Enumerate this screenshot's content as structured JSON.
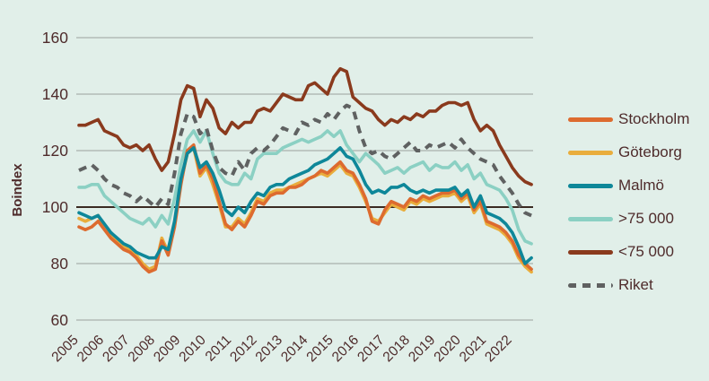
{
  "chart_data": {
    "type": "line",
    "title": "",
    "ylabel": "Boindex",
    "yticks": [
      160,
      140,
      120,
      100,
      80,
      60
    ],
    "ylim": [
      55,
      165
    ],
    "reference_line": 100,
    "grid": "horizontal",
    "legend_position": "right",
    "x_years": [
      "2005",
      "2006",
      "2007",
      "2008",
      "2009",
      "2010",
      "2011",
      "2012",
      "2013",
      "2014",
      "2015",
      "2016",
      "2017",
      "2018",
      "2019",
      "2020",
      "2021",
      "2022"
    ],
    "points_per_year": 4,
    "x_note": "values are quarterly estimates, 2005Q1-2022Q4",
    "series": [
      {
        "key": "stockholm",
        "name": "Stockholm",
        "color": "#dd6b2f",
        "line_style": "solid",
        "values": [
          93,
          92,
          93,
          95,
          92,
          89,
          87,
          85,
          84,
          82,
          79,
          77,
          78,
          88,
          83,
          93,
          108,
          120,
          122,
          112,
          115,
          110,
          102,
          94,
          92,
          95,
          93,
          97,
          102,
          101,
          104,
          105,
          105,
          107,
          107,
          108,
          110,
          111,
          113,
          112,
          114,
          116,
          113,
          112,
          108,
          103,
          95,
          94,
          99,
          102,
          101,
          100,
          103,
          102,
          104,
          103,
          104,
          105,
          105,
          106,
          103,
          105,
          99,
          102,
          95,
          94,
          93,
          91,
          88,
          83,
          80,
          78
        ]
      },
      {
        "key": "goteborg",
        "name": "Göteborg",
        "color": "#e9ad3c",
        "line_style": "solid",
        "values": [
          96,
          95,
          96,
          97,
          93,
          90,
          88,
          86,
          85,
          83,
          80,
          78,
          79,
          89,
          84,
          94,
          109,
          119,
          121,
          111,
          114,
          108,
          101,
          93,
          93,
          96,
          94,
          98,
          103,
          102,
          105,
          106,
          106,
          107,
          108,
          109,
          110,
          111,
          112,
          111,
          113,
          115,
          112,
          111,
          107,
          102,
          96,
          95,
          98,
          101,
          100,
          99,
          102,
          101,
          103,
          102,
          103,
          104,
          104,
          105,
          102,
          104,
          98,
          101,
          94,
          93,
          92,
          90,
          87,
          82,
          79,
          77
        ]
      },
      {
        "key": "malmo",
        "name": "Malmö",
        "color": "#0e8799",
        "line_style": "solid",
        "values": [
          98,
          97,
          96,
          97,
          94,
          91,
          89,
          87,
          86,
          84,
          83,
          82,
          82,
          86,
          85,
          95,
          110,
          119,
          121,
          114,
          116,
          112,
          106,
          99,
          97,
          100,
          98,
          102,
          105,
          104,
          107,
          108,
          108,
          110,
          111,
          112,
          113,
          115,
          116,
          117,
          119,
          121,
          118,
          117,
          113,
          108,
          105,
          106,
          105,
          107,
          107,
          108,
          106,
          105,
          106,
          105,
          106,
          106,
          106,
          107,
          104,
          106,
          100,
          104,
          98,
          97,
          96,
          94,
          91,
          86,
          80,
          82
        ]
      },
      {
        "key": "gt75000",
        "name": ">75 000",
        "color": "#8bd0c3",
        "line_style": "solid",
        "values": [
          107,
          107,
          108,
          108,
          104,
          102,
          100,
          98,
          96,
          95,
          94,
          96,
          93,
          97,
          94,
          103,
          115,
          124,
          127,
          123,
          127,
          119,
          112,
          109,
          108,
          108,
          112,
          110,
          117,
          119,
          119,
          119,
          121,
          122,
          123,
          124,
          123,
          124,
          125,
          127,
          125,
          127,
          122,
          119,
          116,
          119,
          117,
          115,
          112,
          113,
          114,
          112,
          114,
          115,
          116,
          113,
          115,
          114,
          114,
          116,
          113,
          115,
          110,
          112,
          108,
          107,
          106,
          103,
          99,
          92,
          88,
          87
        ]
      },
      {
        "key": "lt75000",
        "name": "<75 000",
        "color": "#8a3a1d",
        "line_style": "solid",
        "values": [
          129,
          129,
          130,
          131,
          127,
          126,
          125,
          122,
          121,
          122,
          120,
          122,
          117,
          113,
          116,
          126,
          138,
          143,
          142,
          132,
          138,
          135,
          128,
          126,
          130,
          128,
          130,
          130,
          134,
          135,
          134,
          137,
          140,
          139,
          138,
          138,
          143,
          144,
          142,
          140,
          146,
          149,
          148,
          139,
          137,
          135,
          134,
          131,
          129,
          131,
          130,
          132,
          131,
          133,
          132,
          134,
          134,
          136,
          137,
          137,
          136,
          137,
          131,
          127,
          129,
          127,
          122,
          118,
          114,
          111,
          109,
          108
        ]
      },
      {
        "key": "riket",
        "name": "Riket",
        "color": "#5f6161",
        "line_style": "dashed",
        "values": [
          113,
          114,
          115,
          113,
          110,
          108,
          107,
          105,
          104,
          102,
          104,
          102,
          100,
          103,
          101,
          112,
          126,
          133,
          132,
          126,
          128,
          120,
          114,
          112,
          111,
          116,
          113,
          119,
          121,
          120,
          122,
          125,
          128,
          127,
          126,
          130,
          129,
          131,
          130,
          133,
          131,
          134,
          136,
          135,
          127,
          121,
          119,
          120,
          118,
          117,
          119,
          121,
          123,
          120,
          120,
          122,
          121,
          122,
          123,
          121,
          124,
          121,
          119,
          117,
          116,
          115,
          111,
          108,
          105,
          101,
          98,
          97
        ]
      }
    ]
  },
  "colors": {
    "background": "#e1efe9",
    "gridline": "#a9b0ad",
    "reference_line": "#3a2a22",
    "axis_text": "#4e2b2b"
  }
}
